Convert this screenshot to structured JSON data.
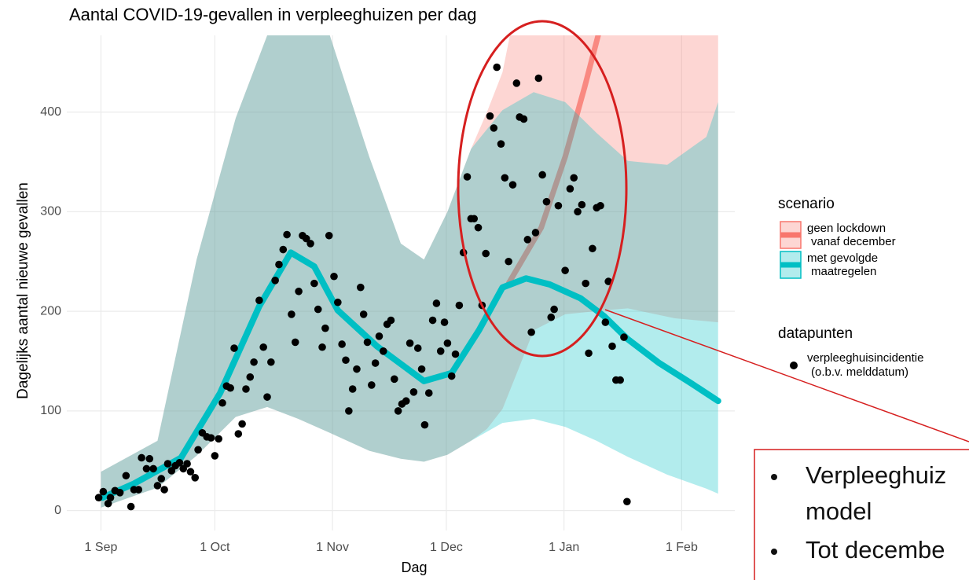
{
  "chart_data": {
    "type": "line",
    "title": "Aantal COVID-19-gevallen in verpleeghuizen per dag",
    "x_label": "Dag",
    "y_label": "Dagelijks aantal nieuwe gevallen",
    "xlim": [
      -9,
      167
    ],
    "xticks": [
      {
        "value": 0,
        "label": "1 Sep"
      },
      {
        "value": 30,
        "label": "1 Oct"
      },
      {
        "value": 61,
        "label": "1 Nov"
      },
      {
        "value": 91,
        "label": "1 Dec"
      },
      {
        "value": 122,
        "label": "1 Jan"
      },
      {
        "value": 153,
        "label": "1 Feb"
      }
    ],
    "ylim": [
      -20,
      477
    ],
    "yticks": [
      0,
      100,
      200,
      300,
      400
    ],
    "grid": true,
    "legend_title": "scenario",
    "series": [
      {
        "name": [
          "geen lockdown",
          "vanaf december"
        ],
        "color": "#f8766d",
        "x": [
          107.4,
          116,
          122.3,
          127.5,
          131
        ],
        "values": [
          228,
          284,
          355,
          426,
          477
        ],
        "band": {
          "x": [
            0,
            14.9,
            25.2,
            35.5,
            43.8,
            52,
            60.3,
            70.7,
            79,
            85.1,
            91.3,
            97.5,
            101.7,
            105.8,
            110,
            114,
            122.3,
            132.6,
            138.8,
            151.2,
            162.6
          ],
          "upper": [
            39,
            70,
            252,
            394,
            477,
            560,
            477,
            355,
            268,
            252,
            300,
            363,
            400,
            440,
            520,
            520,
            520,
            520,
            520,
            520,
            520
          ],
          "lower": [
            3,
            23,
            55,
            94,
            104,
            92,
            78,
            60,
            52,
            49,
            56,
            70,
            82,
            102,
            142,
            181,
            197,
            201,
            203,
            193,
            189
          ]
        }
      },
      {
        "name": [
          "met gevolgde",
          "maatregelen"
        ],
        "color": "#00bfc4",
        "x": [
          0.4,
          8.7,
          21.1,
          31.4,
          41.7,
          50,
          56.2,
          62.4,
          72.7,
          85.1,
          92.4,
          99.6,
          105.8,
          112,
          118.2,
          126.4,
          132.6,
          138.8,
          147.1,
          155.4,
          162.6
        ],
        "values": [
          13,
          27,
          53,
          118,
          205,
          259,
          245,
          201,
          165,
          130,
          138,
          181,
          224,
          233,
          227,
          213,
          195,
          172,
          148,
          128,
          110
        ],
        "band": {
          "x": [
            0,
            14.9,
            25.2,
            35.5,
            43.8,
            52,
            60.3,
            70.7,
            79,
            85.1,
            91.3,
            97.5,
            105.8,
            114,
            122.3,
            130.6,
            138.8,
            149.2,
            159.5,
            162.6
          ],
          "upper": [
            39,
            70,
            252,
            394,
            477,
            560,
            477,
            355,
            268,
            252,
            300,
            363,
            402,
            420,
            410,
            379,
            351,
            347,
            375,
            410
          ],
          "lower": [
            3,
            23,
            55,
            94,
            104,
            92,
            78,
            60,
            52,
            49,
            56,
            70,
            88,
            92,
            84,
            70,
            54,
            36,
            22,
            17
          ]
        }
      }
    ],
    "points": {
      "legend_title": "datapunten",
      "name": [
        "verpleeghuisincidentie",
        "(o.b.v. melddatum)"
      ],
      "color": "#000000",
      "x": [
        -0.6,
        0.6,
        1.9,
        2.5,
        3.7,
        5,
        6.6,
        7.9,
        8.7,
        9.9,
        10.7,
        12,
        12.8,
        13.8,
        14.9,
        15.9,
        16.7,
        17.6,
        18.6,
        19.6,
        20.7,
        21.7,
        22.7,
        23.6,
        24.8,
        25.6,
        26.7,
        27.9,
        29,
        30,
        31,
        32,
        33.1,
        34.1,
        35.1,
        36.2,
        37.2,
        38.2,
        39.3,
        40.3,
        41.7,
        42.8,
        43.8,
        44.8,
        45.9,
        46.9,
        48,
        49,
        50.2,
        51.2,
        52.1,
        53.1,
        54.1,
        55.2,
        56.2,
        57.2,
        58.3,
        59.1,
        60.1,
        61.4,
        62.4,
        63.5,
        64.5,
        65.3,
        66.3,
        67.4,
        68.4,
        69.2,
        70.2,
        71.3,
        72.3,
        73.3,
        74.4,
        75.4,
        76.4,
        77.3,
        78.3,
        79.3,
        80.4,
        81.4,
        82.4,
        83.5,
        84.5,
        85.3,
        86.4,
        87.4,
        88.4,
        89.5,
        90.5,
        91.3,
        92.4,
        93.4,
        94.4,
        95.5,
        96.5,
        97.5,
        98.3,
        99.4,
        100.4,
        101.4,
        102.5,
        103.5,
        104.3,
        105.4,
        106.4,
        107.4,
        108.5,
        109.5,
        110.3,
        111.4,
        112.4,
        113.4,
        114.5,
        115.3,
        116.3,
        117.4,
        118.6,
        119.4,
        120.5,
        122.3,
        123.6,
        124.6,
        125.6,
        126.7,
        127.7,
        128.5,
        129.5,
        130.6,
        131.6,
        132.9,
        133.7,
        134.7,
        135.7,
        136.8,
        137.8,
        138.6
      ],
      "values": [
        13,
        19,
        7,
        13,
        20,
        18,
        35,
        4,
        21,
        21,
        53,
        42,
        52,
        42,
        25,
        32,
        21,
        47,
        40,
        45,
        48,
        42,
        47,
        39,
        33,
        61,
        78,
        74,
        73,
        55,
        72,
        108,
        125,
        123,
        163,
        77,
        87,
        122,
        134,
        149,
        211,
        164,
        114,
        149,
        231,
        247,
        262,
        277,
        197,
        169,
        220,
        276,
        273,
        268,
        228,
        202,
        164,
        183,
        276,
        235,
        209,
        167,
        151,
        100,
        122,
        142,
        224,
        197,
        169,
        126,
        148,
        175,
        160,
        187,
        191,
        132,
        100,
        107,
        110,
        168,
        119,
        163,
        142,
        86,
        118,
        191,
        208,
        160,
        189,
        168,
        135,
        157,
        206,
        259,
        335,
        293,
        293,
        284,
        206,
        258,
        396,
        384,
        445,
        368,
        334,
        250,
        327,
        429,
        395,
        393,
        272,
        179,
        279,
        434,
        337,
        310,
        194,
        202,
        306,
        241,
        323,
        334,
        300,
        307,
        228,
        158,
        263,
        304,
        306,
        189,
        230,
        165,
        131,
        131,
        174,
        9
      ]
    }
  },
  "note": {
    "lines": [
      "Verpleeghuiz",
      "model",
      "Tot decembe"
    ]
  }
}
